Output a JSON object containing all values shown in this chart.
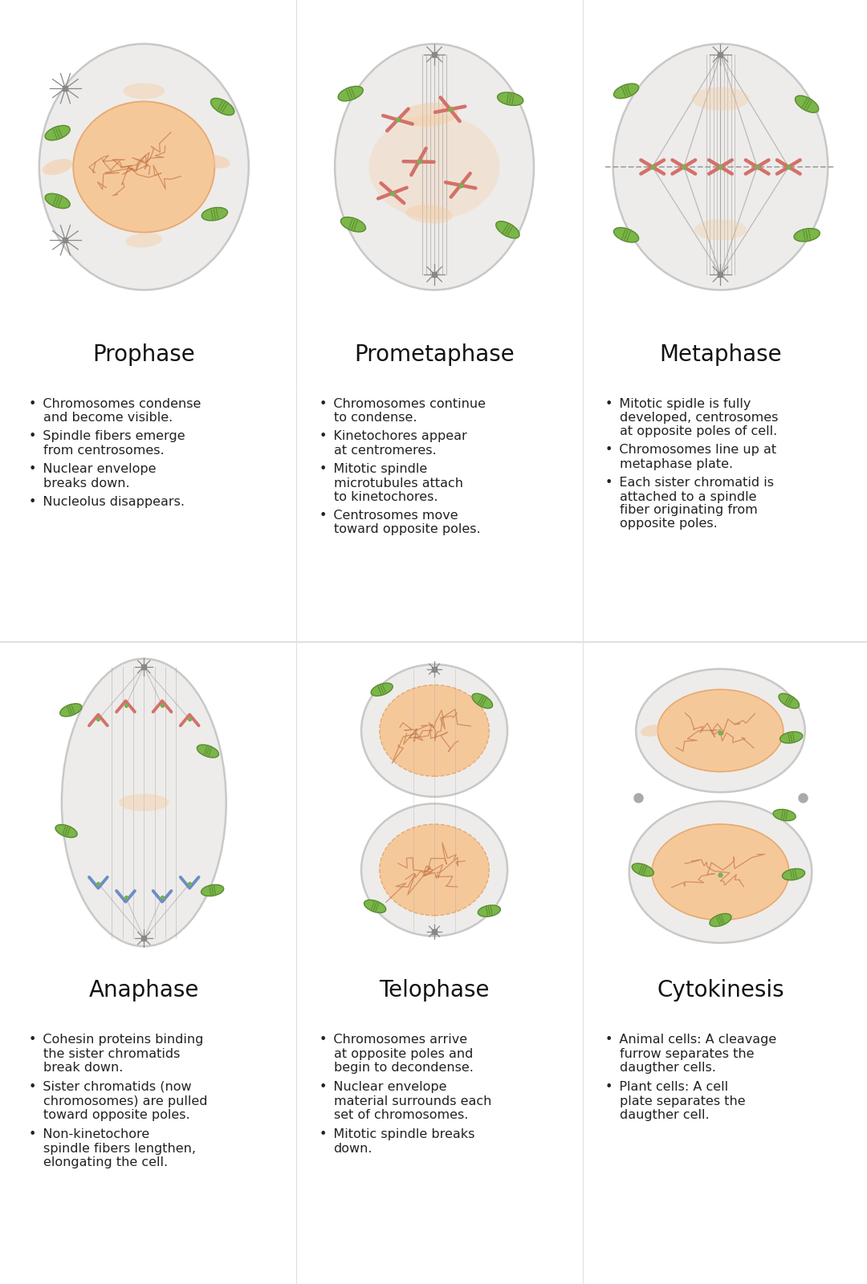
{
  "background_color": "#ffffff",
  "header_bg": "#fce8ea",
  "text_bg": "#f7f7f7",
  "cell_fill": "#edecea",
  "cell_edge": "#c8c8c8",
  "nucleus_fill": "#f5c89a",
  "nucleus_edge": "#e8a870",
  "green_mito": "#7ab648",
  "green_mito_edge": "#5a8a30",
  "red_chrom": "#d4706a",
  "blue_chrom": "#6b8ec4",
  "orange_blob": "#f5c89a",
  "spindle_color": "#909090",
  "chromatin_color": "#c07040",
  "phases": [
    "Prophase",
    "Prometaphase",
    "Metaphase",
    "Anaphase",
    "Telophase",
    "Cytokinesis"
  ],
  "descriptions": [
    [
      "Chromosomes condense\nand become visible.",
      "Spindle fibers emerge\nfrom centrosomes.",
      "Nuclear envelope\nbreaks down.",
      "Nucleolus disappears."
    ],
    [
      "Chromosomes continue\nto condense.",
      "Kinetochores appear\nat centromeres.",
      "Mitotic spindle\nmicrotubules attach\nto kinetochores.",
      "Centrosomes move\ntoward opposite poles."
    ],
    [
      "Mitotic spidle is fully\ndeveloped, centrosomes\nat opposite poles of cell.",
      "Chromosomes line up at\nmetaphase plate.",
      "Each sister chromatid is\nattached to a spindle\nfiber originating from\nopposite poles."
    ],
    [
      "Cohesin proteins binding\nthe sister chromatids\nbreak down.",
      "Sister chromatids (now\nchromosomes) are pulled\ntoward opposite poles.",
      "Non-kinetochore\nspindle fibers lengthen,\nelongating the cell."
    ],
    [
      "Chromosomes arrive\nat opposite poles and\nbegin to decondense.",
      "Nuclear envelope\nmaterial surrounds each\nset of chromosomes.",
      "Mitotic spindle breaks\ndown."
    ],
    [
      "Animal cells: A cleavage\nfurrow separates the\ndaugther cells.",
      "Plant cells: A cell\nplate separates the\ndaugther cell."
    ]
  ],
  "title_fontsize": 20,
  "body_fontsize": 11.5,
  "bullet": "•"
}
